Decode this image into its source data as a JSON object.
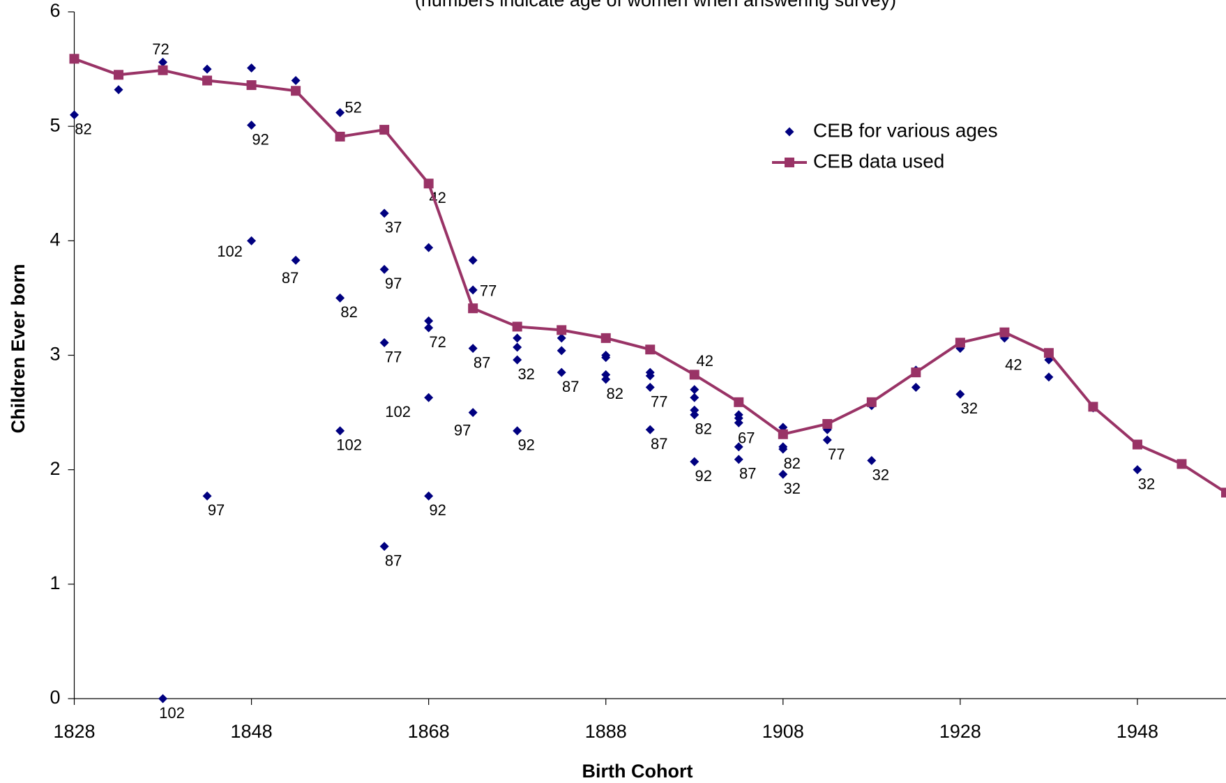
{
  "chart_data": {
    "type": "scatter",
    "subtitle": "(numbers indicate age of women when answering survey)",
    "x_label": "Birth Cohort",
    "y_label": "Children Ever born",
    "xlim": [
      1828,
      1958
    ],
    "xticks": [
      1828,
      1848,
      1868,
      1888,
      1908,
      1928,
      1948
    ],
    "ylim": [
      0,
      6
    ],
    "yticks": [
      0,
      1,
      2,
      3,
      4,
      5,
      6
    ],
    "series": [
      {
        "name": "CEB for various ages",
        "color": "#000080",
        "type": "scatter",
        "x": [
          1828,
          1833,
          1838,
          1838,
          1843,
          1843,
          1848,
          1848,
          1848,
          1853,
          1853,
          1858,
          1858,
          1858,
          1863,
          1863,
          1863,
          1863,
          1868,
          1868,
          1868,
          1868,
          1868,
          1868,
          1873,
          1873,
          1873,
          1873,
          1878,
          1878,
          1878,
          1878,
          1883,
          1883,
          1883,
          1888,
          1888,
          1888,
          1888,
          1893,
          1893,
          1893,
          1893,
          1898,
          1898,
          1898,
          1898,
          1898,
          1898,
          1903,
          1903,
          1903,
          1903,
          1903,
          1908,
          1908,
          1908,
          1908,
          1913,
          1913,
          1918,
          1918,
          1918,
          1923,
          1923,
          1928,
          1928,
          1933,
          1938,
          1938,
          1943,
          1948
        ],
        "values": [
          5.1,
          5.32,
          5.56,
          0,
          5.5,
          1.77,
          5.51,
          5.01,
          4.0,
          5.4,
          3.83,
          5.12,
          3.5,
          2.34,
          4.24,
          3.75,
          3.11,
          1.33,
          4.5,
          3.94,
          3.3,
          3.24,
          2.63,
          1.77,
          3.83,
          3.57,
          3.06,
          2.5,
          3.15,
          3.07,
          2.96,
          2.34,
          3.15,
          3.04,
          2.85,
          3.0,
          2.98,
          2.83,
          2.79,
          2.85,
          2.82,
          2.72,
          2.35,
          2.83,
          2.7,
          2.63,
          2.52,
          2.48,
          2.07,
          2.48,
          2.45,
          2.41,
          2.2,
          2.09,
          2.37,
          2.2,
          2.18,
          1.96,
          2.35,
          2.26,
          2.59,
          2.56,
          2.08,
          2.87,
          2.72,
          3.06,
          2.66,
          3.15,
          2.96,
          2.81,
          2.54,
          2.0
        ],
        "point_labels": [
          "82",
          null,
          "72",
          "102",
          null,
          "97",
          null,
          "92",
          "102",
          null,
          "87",
          "52",
          "82",
          "102",
          "37",
          "97",
          "77",
          "87",
          "42",
          null,
          null,
          "72",
          "102",
          "92",
          null,
          "77",
          "87",
          "97",
          null,
          null,
          "32",
          "92",
          null,
          null,
          "87",
          null,
          null,
          null,
          "82",
          null,
          null,
          "77",
          "87",
          "42",
          null,
          null,
          null,
          "82",
          "92",
          null,
          null,
          null,
          "67",
          "87",
          null,
          null,
          "82",
          "32",
          null,
          "77",
          null,
          null,
          "32",
          null,
          null,
          null,
          "32",
          "42",
          null,
          null,
          null,
          "32"
        ]
      },
      {
        "name": "CEB data used",
        "color": "#993366",
        "type": "line",
        "x": [
          1828,
          1833,
          1838,
          1843,
          1848,
          1853,
          1858,
          1863,
          1868,
          1873,
          1878,
          1883,
          1888,
          1893,
          1898,
          1903,
          1908,
          1913,
          1918,
          1923,
          1928,
          1933,
          1938,
          1943,
          1948,
          1953,
          1958
        ],
        "values": [
          5.59,
          5.45,
          5.49,
          5.4,
          5.36,
          5.31,
          4.91,
          4.97,
          4.5,
          3.41,
          3.25,
          3.22,
          3.15,
          3.05,
          2.83,
          2.59,
          2.31,
          2.4,
          2.59,
          2.85,
          3.11,
          3.2,
          3.02,
          2.55,
          2.22,
          2.05,
          1.8
        ]
      }
    ]
  }
}
